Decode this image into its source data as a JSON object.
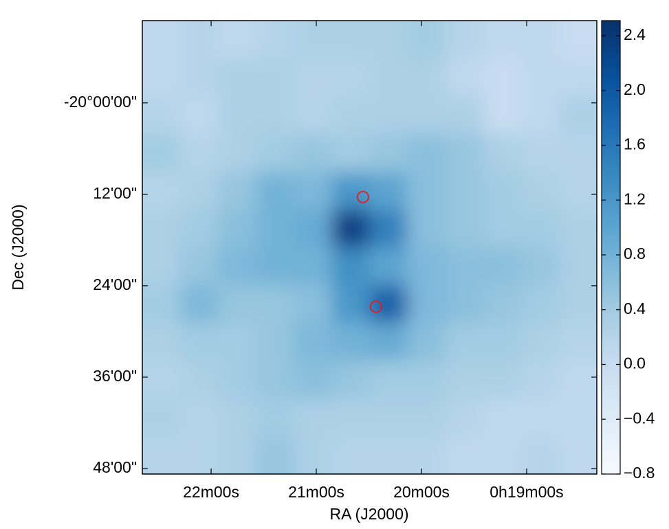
{
  "chart_data": {
    "type": "image",
    "xlabel": "RA (J2000)",
    "ylabel": "Dec (J2000)",
    "xlim": [
      22.654,
      18.333
    ],
    "xticks": [
      {
        "value": 22,
        "label": "22m00s"
      },
      {
        "value": 21,
        "label": "21m00s"
      },
      {
        "value": 20,
        "label": "20m00s"
      },
      {
        "value": 19,
        "label": "0h19m00s"
      }
    ],
    "ylim": [
      -20.812,
      -19.82
    ],
    "yticks": [
      {
        "value": -20,
        "label": "-20°00'00\""
      },
      {
        "value": -20.2,
        "label": "12'00\""
      },
      {
        "value": -20.4,
        "label": "24'00\""
      },
      {
        "value": -20.6,
        "label": "36'00\""
      },
      {
        "value": -20.8,
        "label": "48'00\""
      }
    ],
    "zlim": [
      -0.8,
      2.51
    ],
    "zticks": [
      2.4,
      {
        "value": 2,
        "label": "2.0"
      },
      1.6,
      1.2,
      0.8,
      0.4,
      {
        "value": 0,
        "label": "0.0"
      },
      {
        "value": -0.4,
        "label": "−0.4"
      },
      {
        "value": -0.8,
        "label": "−0.8"
      }
    ],
    "colormap": [
      "#f7fbff",
      "#deebf7",
      "#c6dbef",
      "#9ecae1",
      "#6baed6",
      "#4292c6",
      "#2171b5",
      "#08519c",
      "#08306b"
    ],
    "z": [
      [
        0.1,
        0.2,
        0.1,
        0.2,
        0.3,
        0.3,
        0.3,
        0.4,
        0.2,
        0.1,
        0.1,
        0.0
      ],
      [
        0.1,
        0.2,
        0.3,
        0.3,
        0.2,
        0.2,
        0.3,
        0.3,
        0.1,
        0.0,
        0.1,
        0.1
      ],
      [
        0.2,
        0.1,
        0.3,
        0.3,
        0.2,
        0.3,
        0.3,
        0.3,
        0.3,
        0.0,
        0.1,
        0.3
      ],
      [
        0.4,
        0.2,
        0.3,
        0.4,
        0.5,
        0.4,
        0.5,
        0.6,
        0.5,
        0.3,
        0.2,
        0.2
      ],
      [
        0.2,
        0.3,
        0.5,
        0.8,
        0.7,
        1.2,
        1.0,
        0.6,
        0.5,
        0.4,
        0.3,
        0.2
      ],
      [
        0.3,
        0.4,
        0.6,
        0.8,
        0.9,
        2.3,
        1.5,
        0.6,
        0.5,
        0.4,
        0.4,
        0.3
      ],
      [
        0.3,
        0.5,
        0.7,
        0.8,
        0.8,
        1.3,
        1.0,
        0.7,
        0.6,
        0.6,
        0.5,
        0.3
      ],
      [
        0.4,
        0.7,
        0.5,
        0.5,
        0.6,
        1.2,
        1.9,
        0.7,
        0.6,
        0.5,
        0.4,
        0.3
      ],
      [
        0.3,
        0.4,
        0.4,
        0.5,
        0.7,
        0.8,
        0.9,
        0.6,
        0.4,
        0.4,
        0.3,
        0.2
      ],
      [
        0.2,
        0.3,
        0.4,
        0.5,
        0.6,
        0.5,
        0.4,
        0.4,
        0.3,
        0.3,
        0.2,
        0.1
      ],
      [
        0.3,
        0.2,
        0.3,
        0.4,
        0.3,
        0.3,
        0.3,
        0.3,
        0.2,
        0.1,
        0.1,
        0.1
      ],
      [
        0.2,
        0.2,
        0.3,
        0.5,
        0.3,
        0.2,
        0.2,
        0.2,
        0.1,
        0.1,
        0.2,
        0.1
      ]
    ],
    "markers": {
      "x": [
        20.556,
        20.432
      ],
      "y": [
        -20.206,
        -20.446
      ],
      "color": "#e41a1c"
    }
  }
}
